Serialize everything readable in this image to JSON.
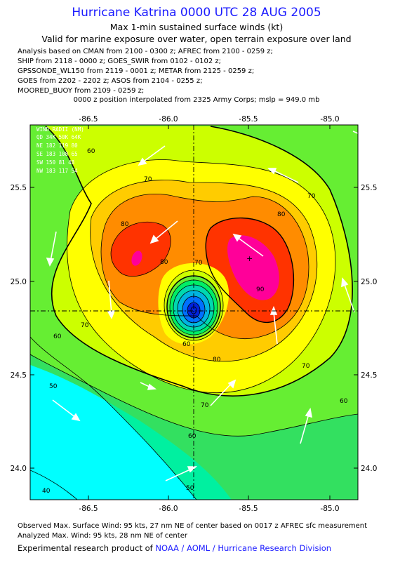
{
  "title": "Hurricane Katrina 0000 UTC 28 AUG 2005",
  "subtitle1": "Max 1-min sustained surface winds (kt)",
  "subtitle2": "Valid for marine exposure over water, open terrain exposure over land",
  "analysis_lines": [
    "Analysis based on  CMAN from 2100 - 0300 z;  AFREC from 2100 - 0259 z;",
    "SHIP from 2118 - 0000 z;  GOES_SWIR from 0102 - 0102 z;",
    "GPSSONDE_WL150 from 2119 - 0001 z;  METAR from 2125 - 0259 z;",
    "GOES from 2202 - 2202 z;  ASOS from 2104 - 0255 z;",
    "MOORED_BUOY from 2109 - 0259 z;"
  ],
  "position_note": "0000 z position interpolated from 2325 Army Corps; mslp = 949.0 mb",
  "lon_ticks": [
    "-86.5",
    "-86.0",
    "-85.5",
    "-85.0"
  ],
  "lat_ticks": [
    "25.5",
    "25.0",
    "24.5",
    "24.0"
  ],
  "wind_radii": {
    "header": "WIND RADII (NM)",
    "columns": "QD 34K 50K 64K",
    "rows": [
      "NE 182 119  80",
      "SE 183 108  65",
      "SW 150  81  48",
      "NW 183 117  54"
    ]
  },
  "contour_labels": [
    "60",
    "70",
    "80",
    "90",
    "50",
    "40"
  ],
  "footer": {
    "observed": "Observed Max. Surface Wind: 95 kts, 27 nm NE of center based on 0017 z AFREC sfc measurement",
    "analyzed": "Analyzed Max. Wind: 95 kts, 28 nm NE of center",
    "credit_prefix": "Experimental research product of",
    "credit_org": "NOAA / AOML / Hurricane Research Division"
  },
  "colors": {
    "title": "#1a1aff",
    "level_40": "#00ffff",
    "level_50": "#00f0a0",
    "level_60": "#66ee33",
    "level_70": "#ccff00",
    "level_75": "#ffff00",
    "level_80": "#ffcc00",
    "level_85": "#ff8c00",
    "level_90": "#ff3300",
    "level_95": "#ff0099"
  }
}
